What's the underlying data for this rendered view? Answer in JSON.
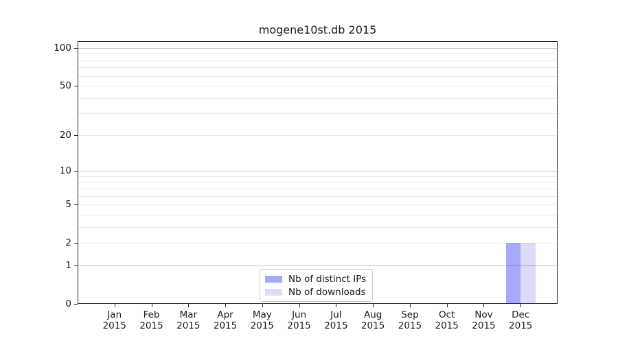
{
  "chart_data": {
    "type": "bar",
    "title": "mogene10st.db 2015",
    "categories": [
      "Jan",
      "Feb",
      "Mar",
      "Apr",
      "May",
      "Jun",
      "Jul",
      "Aug",
      "Sep",
      "Oct",
      "Nov",
      "Dec"
    ],
    "category_year": "2015",
    "series": [
      {
        "name": "Nb of distinct IPs",
        "color": "#a8a8fa",
        "values": [
          0,
          0,
          0,
          0,
          0,
          0,
          0,
          0,
          0,
          0,
          0,
          2
        ]
      },
      {
        "name": "Nb of downloads",
        "color": "#dcdcfa",
        "values": [
          0,
          0,
          0,
          0,
          0,
          0,
          0,
          0,
          0,
          0,
          0,
          2
        ]
      }
    ],
    "xlabel": "",
    "ylabel": "",
    "yscale": "log1p",
    "ylim": [
      0,
      113.3
    ],
    "yticks": [
      0,
      1,
      2,
      5,
      10,
      20,
      50,
      100
    ],
    "grid": "on",
    "grid_major": [
      1,
      10,
      100
    ],
    "grid_minor": [
      2,
      3,
      4,
      5,
      6,
      7,
      8,
      9,
      20,
      30,
      40,
      50,
      60,
      70,
      80,
      90
    ],
    "legend_position": "lower center"
  },
  "style": {
    "background": "#ffffff",
    "spine_color": "#262626",
    "text_color": "#1a1a1a",
    "grid_major_color": "rgba(0,0,0,0.22)",
    "grid_minor_color": "rgba(0,0,0,0.08)",
    "legend_border_color": "#cccccc",
    "bar_distinct_ips_color": "#a8a8fa",
    "bar_downloads_color": "#dcdcfa"
  }
}
